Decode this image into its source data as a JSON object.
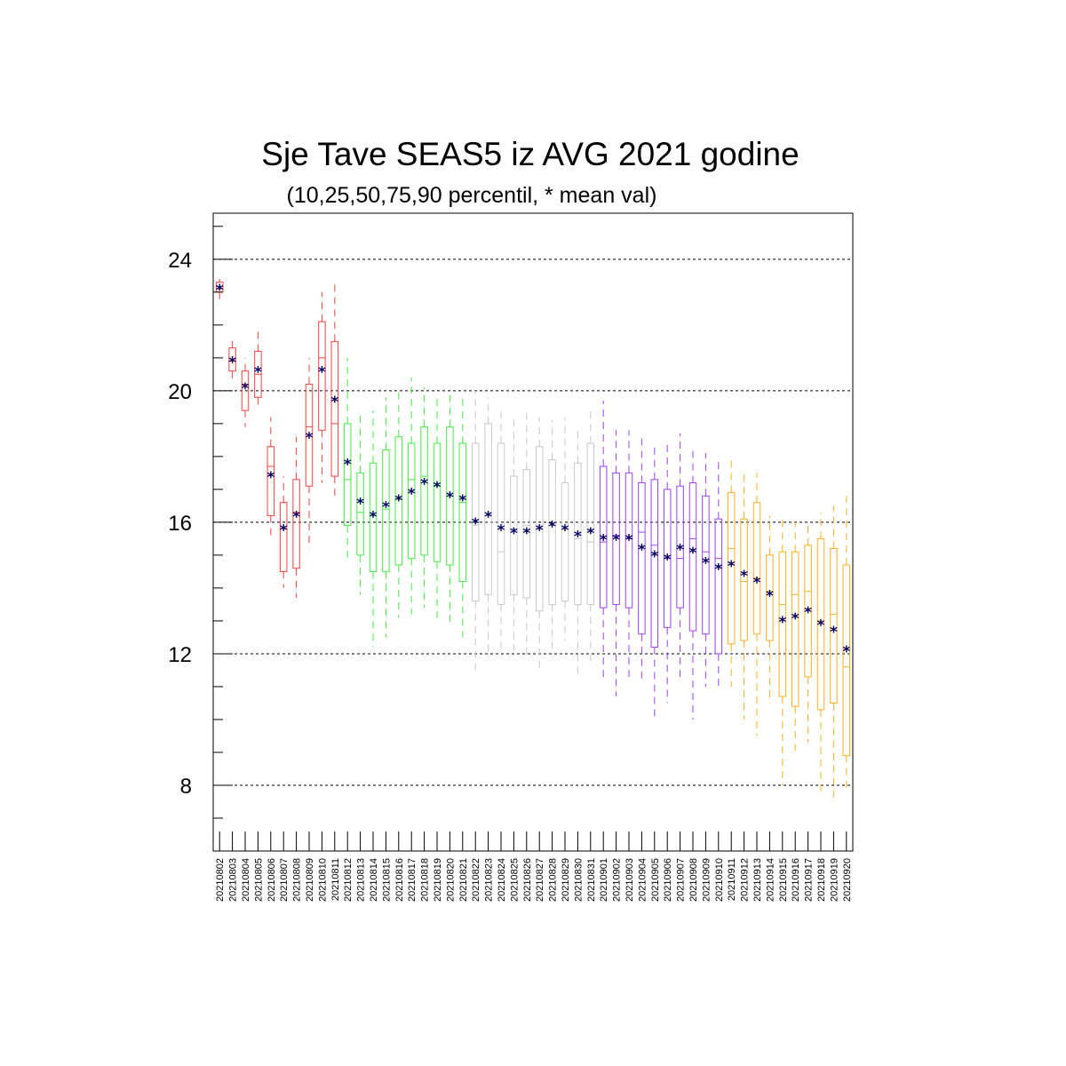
{
  "chart_data": {
    "type": "box",
    "title": "Sje Tave SEAS5 iz AVG 2021 godine",
    "subtitle": "(10,25,50,75,90 percentil, * mean val)",
    "xlabel": "",
    "ylabel": "",
    "ylim": [
      6,
      25.4
    ],
    "yticks": [
      8,
      12,
      16,
      20,
      24
    ],
    "ytick_labels": [
      "8",
      "12",
      "16",
      "20",
      "24"
    ],
    "grid": "horizontal dashed at major ticks",
    "mean_marker": "*",
    "colors": {
      "august_early": "#ff4040",
      "august_mid": "#44ee44",
      "august_late": "#c8c8c8",
      "september_early": "#a040ff",
      "september_late": "#ffb020",
      "mean_marker": "#000060",
      "grid": "#000000"
    },
    "categories": [
      "20210802",
      "20210803",
      "20210804",
      "20210805",
      "20210806",
      "20210807",
      "20210808",
      "20210809",
      "20210810",
      "20210811",
      "20210812",
      "20210813",
      "20210814",
      "20210815",
      "20210816",
      "20210817",
      "20210818",
      "20210819",
      "20210820",
      "20210821",
      "20210822",
      "20210823",
      "20210824",
      "20210825",
      "20210826",
      "20210827",
      "20210828",
      "20210829",
      "20210830",
      "20210831",
      "20210901",
      "20210902",
      "20210903",
      "20210904",
      "20210905",
      "20210906",
      "20210907",
      "20210908",
      "20210909",
      "20210910",
      "20210911",
      "20210912",
      "20210913",
      "20210914",
      "20210915",
      "20210916",
      "20210917",
      "20210918",
      "20210919",
      "20210920"
    ],
    "color_group": [
      "august_early",
      "august_early",
      "august_early",
      "august_early",
      "august_early",
      "august_early",
      "august_early",
      "august_early",
      "august_early",
      "august_early",
      "august_mid",
      "august_mid",
      "august_mid",
      "august_mid",
      "august_mid",
      "august_mid",
      "august_mid",
      "august_mid",
      "august_mid",
      "august_mid",
      "august_late",
      "august_late",
      "august_late",
      "august_late",
      "august_late",
      "august_late",
      "august_late",
      "august_late",
      "august_late",
      "august_late",
      "september_early",
      "september_early",
      "september_early",
      "september_early",
      "september_early",
      "september_early",
      "september_early",
      "september_early",
      "september_early",
      "september_early",
      "september_late",
      "september_late",
      "september_late",
      "september_late",
      "september_late",
      "september_late",
      "september_late",
      "september_late",
      "september_late",
      "september_late"
    ],
    "p10": [
      22.7,
      20.3,
      18.9,
      19.5,
      15.6,
      14.0,
      13.7,
      15.2,
      17.2,
      16.8,
      14.9,
      13.8,
      12.2,
      12.5,
      13.1,
      13.2,
      13.4,
      13.0,
      12.9,
      12.5,
      11.5,
      12.0,
      12.1,
      12.1,
      11.9,
      11.4,
      12.0,
      12.4,
      11.4,
      11.6,
      11.2,
      10.7,
      11.2,
      11.2,
      10.1,
      10.5,
      11.2,
      10.0,
      11.0,
      10.9,
      11.0,
      10.0,
      9.5,
      10.5,
      8.0,
      9.0,
      9.3,
      7.7,
      7.6,
      7.8
    ],
    "p25": [
      23.0,
      20.6,
      19.4,
      19.8,
      16.2,
      14.5,
      14.6,
      17.1,
      18.8,
      17.4,
      15.9,
      15.0,
      14.5,
      14.5,
      14.7,
      14.9,
      15.0,
      14.8,
      14.7,
      14.2,
      13.6,
      13.8,
      13.5,
      13.8,
      13.7,
      13.3,
      13.5,
      13.6,
      13.5,
      13.5,
      13.4,
      13.5,
      13.4,
      12.6,
      12.2,
      12.8,
      13.4,
      12.7,
      12.6,
      12.0,
      12.3,
      12.4,
      12.6,
      12.4,
      10.7,
      10.4,
      11.3,
      10.3,
      10.5,
      8.9
    ],
    "p50": [
      23.1,
      20.9,
      20.2,
      20.5,
      17.7,
      15.8,
      16.3,
      18.9,
      21.0,
      19.0,
      17.3,
      16.3,
      16.2,
      16.4,
      16.7,
      17.3,
      17.4,
      17.1,
      16.8,
      16.6,
      15.9,
      16.2,
      15.1,
      15.8,
      15.9,
      15.8,
      15.9,
      15.8,
      15.5,
      15.4,
      15.4,
      15.6,
      15.5,
      15.7,
      15.3,
      14.9,
      14.9,
      15.5,
      15.1,
      14.9,
      15.2,
      14.2,
      14.3,
      13.9,
      13.5,
      13.8,
      13.9,
      13.0,
      13.2,
      11.6
    ],
    "p75": [
      23.3,
      21.3,
      20.6,
      21.2,
      18.3,
      16.6,
      17.3,
      20.2,
      22.1,
      21.5,
      19.0,
      17.5,
      17.8,
      18.2,
      18.6,
      18.4,
      18.9,
      18.4,
      18.9,
      18.4,
      18.4,
      19.0,
      18.4,
      17.4,
      17.6,
      18.3,
      17.9,
      17.2,
      17.8,
      18.4,
      17.7,
      17.5,
      17.5,
      17.2,
      17.3,
      17.0,
      17.1,
      17.2,
      16.8,
      16.1,
      16.9,
      16.1,
      16.6,
      15.0,
      15.1,
      15.1,
      15.3,
      15.5,
      15.2,
      14.7
    ],
    "p90": [
      23.4,
      21.6,
      21.0,
      21.8,
      19.2,
      17.4,
      18.6,
      21.0,
      23.0,
      23.3,
      21.0,
      19.3,
      19.4,
      19.8,
      20.1,
      20.4,
      20.1,
      19.9,
      20.0,
      19.9,
      20.0,
      19.8,
      19.5,
      19.2,
      19.4,
      19.2,
      19.1,
      19.2,
      18.9,
      19.4,
      19.7,
      18.8,
      18.8,
      18.6,
      18.4,
      18.5,
      18.7,
      18.2,
      18.1,
      18.0,
      18.0,
      17.6,
      17.5,
      16.2,
      16.1,
      16.0,
      16.0,
      16.3,
      16.5,
      16.8
    ],
    "mean": [
      23.1,
      20.9,
      20.1,
      20.6,
      17.4,
      15.8,
      16.2,
      18.6,
      20.6,
      19.7,
      17.8,
      16.6,
      16.2,
      16.5,
      16.7,
      16.9,
      17.2,
      17.1,
      16.8,
      16.7,
      16.0,
      16.2,
      15.8,
      15.7,
      15.7,
      15.8,
      15.9,
      15.8,
      15.6,
      15.7,
      15.5,
      15.5,
      15.5,
      15.2,
      15.0,
      14.9,
      15.2,
      15.1,
      14.8,
      14.6,
      14.7,
      14.4,
      14.2,
      13.8,
      13.0,
      13.1,
      13.3,
      12.9,
      12.7,
      12.1
    ]
  }
}
